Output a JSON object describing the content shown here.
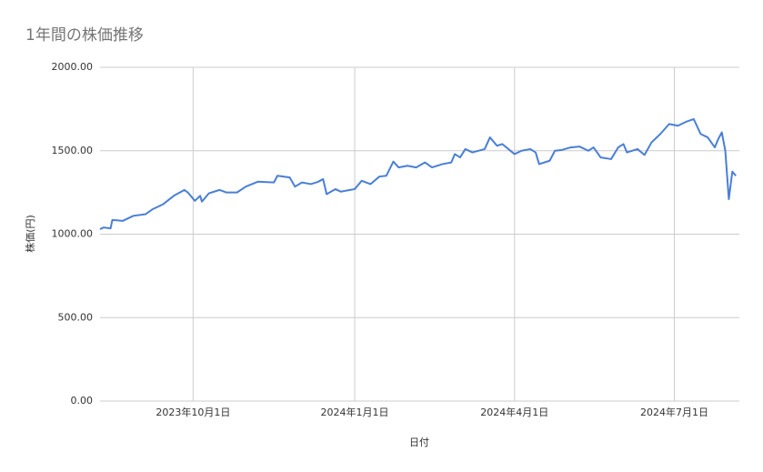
{
  "chart_data": {
    "type": "line",
    "title": "1年間の株価推移",
    "x_label": "日付",
    "y_label": "株価(円)",
    "x": [
      "2023-08-09",
      "2023-08-11",
      "2023-08-15",
      "2023-08-16",
      "2023-08-22",
      "2023-08-28",
      "2023-09-04",
      "2023-09-08",
      "2023-09-14",
      "2023-09-20",
      "2023-09-26",
      "2023-09-28",
      "2023-10-02",
      "2023-10-05",
      "2023-10-06",
      "2023-10-10",
      "2023-10-16",
      "2023-10-20",
      "2023-10-26",
      "2023-10-31",
      "2023-11-07",
      "2023-11-16",
      "2023-11-18",
      "2023-11-25",
      "2023-11-28",
      "2023-12-02",
      "2023-12-07",
      "2023-12-11",
      "2023-12-14",
      "2023-12-16",
      "2023-12-21",
      "2023-12-24",
      "2024-01-01",
      "2024-01-05",
      "2024-01-10",
      "2024-01-15",
      "2024-01-19",
      "2024-01-23",
      "2024-01-26",
      "2024-01-31",
      "2024-02-05",
      "2024-02-10",
      "2024-02-14",
      "2024-02-20",
      "2024-02-25",
      "2024-02-27",
      "2024-03-01",
      "2024-03-04",
      "2024-03-08",
      "2024-03-15",
      "2024-03-18",
      "2024-03-22",
      "2024-03-25",
      "2024-04-01",
      "2024-04-05",
      "2024-04-10",
      "2024-04-13",
      "2024-04-15",
      "2024-04-21",
      "2024-04-24",
      "2024-04-28",
      "2024-05-03",
      "2024-05-08",
      "2024-05-13",
      "2024-05-16",
      "2024-05-20",
      "2024-05-26",
      "2024-05-30",
      "2024-06-02",
      "2024-06-04",
      "2024-06-10",
      "2024-06-14",
      "2024-06-18",
      "2024-06-23",
      "2024-06-28",
      "2024-07-03",
      "2024-07-08",
      "2024-07-12",
      "2024-07-16",
      "2024-07-20",
      "2024-07-24",
      "2024-07-26",
      "2024-07-28",
      "2024-07-30",
      "2024-08-01",
      "2024-08-03",
      "2024-08-05"
    ],
    "series": [
      {
        "name": "株価",
        "color": "#4a7fd6",
        "values": [
          1030,
          1040,
          1035,
          1085,
          1080,
          1110,
          1120,
          1150,
          1180,
          1230,
          1265,
          1250,
          1200,
          1230,
          1195,
          1245,
          1265,
          1250,
          1250,
          1285,
          1315,
          1310,
          1350,
          1340,
          1285,
          1310,
          1300,
          1313,
          1330,
          1240,
          1270,
          1255,
          1270,
          1320,
          1300,
          1345,
          1350,
          1435,
          1400,
          1410,
          1400,
          1430,
          1400,
          1420,
          1430,
          1480,
          1460,
          1510,
          1490,
          1510,
          1580,
          1530,
          1540,
          1480,
          1500,
          1510,
          1490,
          1420,
          1440,
          1500,
          1505,
          1520,
          1525,
          1500,
          1520,
          1460,
          1450,
          1520,
          1540,
          1490,
          1510,
          1475,
          1550,
          1600,
          1660,
          1650,
          1675,
          1690,
          1600,
          1580,
          1520,
          1570,
          1610,
          1500,
          1210,
          1375,
          1350
        ]
      }
    ],
    "xlim": [
      "2023-08-09",
      "2024-08-07"
    ],
    "xticks": [
      {
        "value": "2023-10-01",
        "label": "2023年10月1日"
      },
      {
        "value": "2024-01-01",
        "label": "2024年1月1日"
      },
      {
        "value": "2024-04-01",
        "label": "2024年4月1日"
      },
      {
        "value": "2024-07-01",
        "label": "2024年7月1日"
      }
    ],
    "ylim": [
      0,
      2000
    ],
    "yticks": [
      {
        "value": 0,
        "label": "0.00"
      },
      {
        "value": 500,
        "label": "500.00"
      },
      {
        "value": 1000,
        "label": "1000.00"
      },
      {
        "value": 1500,
        "label": "1500.00"
      },
      {
        "value": 2000,
        "label": "2000.00"
      }
    ],
    "grid": true
  }
}
